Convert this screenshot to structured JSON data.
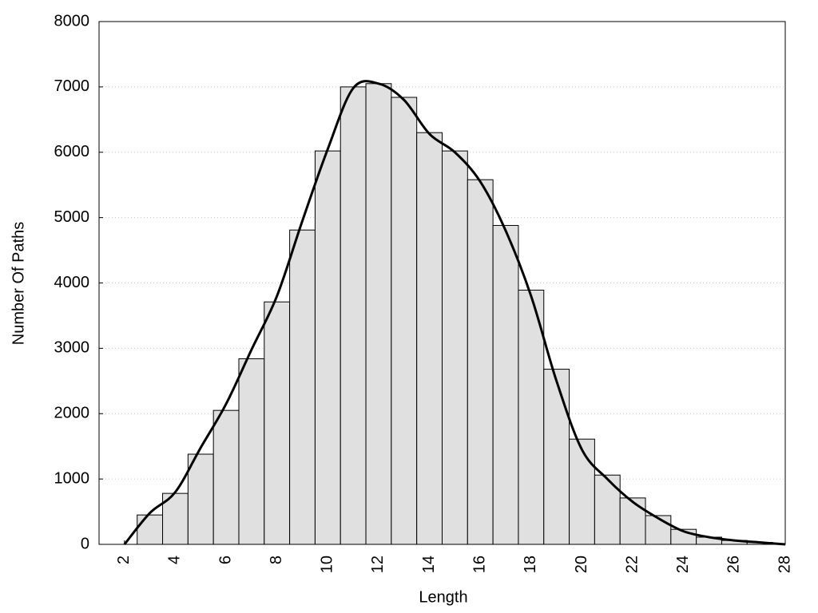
{
  "chart_data": {
    "type": "histogram",
    "xlabel": "Length",
    "ylabel": "Number Of Paths",
    "bins": [
      2.5,
      3.5,
      4.5,
      5.5,
      6.5,
      7.5,
      8.5,
      9.5,
      10.5,
      11.5,
      12.5,
      13.5,
      14.5,
      15.5,
      16.5,
      17.5,
      18.5,
      19.5,
      20.5,
      21.5,
      22.5,
      23.5,
      24.5,
      25.5,
      26.5,
      27.5
    ],
    "values": [
      450,
      780,
      1380,
      2050,
      2840,
      3710,
      4810,
      6020,
      7000,
      7050,
      6840,
      6300,
      6020,
      5580,
      4880,
      3890,
      2680,
      1610,
      1060,
      710,
      440,
      230,
      110,
      60,
      30
    ],
    "color": "#e0e0e0",
    "line": {
      "color": "#000000",
      "x": [
        2,
        3,
        4,
        5,
        6,
        7,
        8,
        9,
        10,
        11,
        12,
        13,
        14,
        15,
        16,
        17,
        18,
        19,
        20,
        21,
        22,
        23,
        24,
        25,
        26,
        27,
        28
      ],
      "values": [
        0,
        480,
        800,
        1480,
        2150,
        2980,
        3800,
        4950,
        6050,
        6980,
        7050,
        6800,
        6280,
        6000,
        5550,
        4800,
        3800,
        2500,
        1450,
        1000,
        650,
        400,
        200,
        110,
        60,
        30,
        0
      ]
    },
    "xlim": [
      1,
      28
    ],
    "xticks": [
      2,
      4,
      6,
      8,
      10,
      12,
      14,
      16,
      18,
      20,
      22,
      24,
      26,
      28
    ],
    "ylim": [
      0,
      8000
    ],
    "yticks": [
      0,
      1000,
      2000,
      3000,
      4000,
      5000,
      6000,
      7000,
      8000
    ],
    "grid": true
  }
}
